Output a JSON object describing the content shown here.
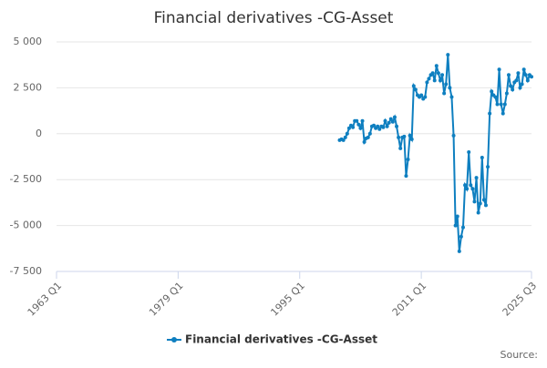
{
  "chart_data": {
    "type": "line",
    "title": "Financial derivatives -CG-Asset",
    "xlim": [
      "1963 Q1",
      "2025 Q3"
    ],
    "xticks": [
      "1963 Q1",
      "1979 Q1",
      "1995 Q1",
      "2011 Q1",
      "2025 Q3"
    ],
    "ylim": [
      -7500,
      5000
    ],
    "yticks": [
      {
        "value": 5000,
        "label": "5 000"
      },
      {
        "value": 2500,
        "label": "2 500"
      },
      0,
      {
        "value": -2500,
        "label": "-2 500"
      },
      {
        "value": -5000,
        "label": "-5 000"
      },
      {
        "value": -7500,
        "label": "-7 500"
      }
    ],
    "grid": true,
    "source": "Source:",
    "x": [
      "2000 Q2",
      "2000 Q3",
      "2000 Q4",
      "2001 Q1",
      "2001 Q2",
      "2001 Q3",
      "2001 Q4",
      "2002 Q1",
      "2002 Q2",
      "2002 Q3",
      "2002 Q4",
      "2003 Q1",
      "2003 Q2",
      "2003 Q3",
      "2003 Q4",
      "2004 Q1",
      "2004 Q2",
      "2004 Q3",
      "2004 Q4",
      "2005 Q1",
      "2005 Q2",
      "2005 Q3",
      "2005 Q4",
      "2006 Q1",
      "2006 Q2",
      "2006 Q3",
      "2006 Q4",
      "2007 Q1",
      "2007 Q2",
      "2007 Q3",
      "2007 Q4",
      "2008 Q1",
      "2008 Q2",
      "2008 Q3",
      "2008 Q4",
      "2009 Q1",
      "2009 Q2",
      "2009 Q3",
      "2009 Q4",
      "2010 Q1",
      "2010 Q2",
      "2010 Q3",
      "2010 Q4",
      "2011 Q1",
      "2011 Q2",
      "2011 Q3",
      "2011 Q4",
      "2012 Q1",
      "2012 Q2",
      "2012 Q3",
      "2012 Q4",
      "2013 Q1",
      "2013 Q2",
      "2013 Q3",
      "2013 Q4",
      "2014 Q1",
      "2014 Q2",
      "2014 Q3",
      "2014 Q4",
      "2015 Q1",
      "2015 Q2",
      "2015 Q3",
      "2015 Q4",
      "2016 Q1",
      "2016 Q2",
      "2016 Q3",
      "2016 Q4",
      "2017 Q1",
      "2017 Q2",
      "2017 Q3",
      "2017 Q4",
      "2018 Q1",
      "2018 Q2",
      "2018 Q3",
      "2018 Q4",
      "2019 Q1",
      "2019 Q2",
      "2019 Q3",
      "2019 Q4",
      "2020 Q1",
      "2020 Q2",
      "2020 Q3",
      "2020 Q4",
      "2021 Q1",
      "2021 Q2",
      "2021 Q3",
      "2021 Q4",
      "2022 Q1",
      "2022 Q2",
      "2022 Q3",
      "2022 Q4",
      "2023 Q1",
      "2023 Q2",
      "2023 Q3",
      "2023 Q4",
      "2024 Q1",
      "2024 Q2",
      "2024 Q3",
      "2024 Q4",
      "2025 Q1",
      "2025 Q2",
      "2025 Q3"
    ],
    "series": [
      {
        "name": "Financial derivatives -CG-Asset",
        "color": "#0e7fc0",
        "values": [
          -350,
          -300,
          -350,
          -200,
          0,
          300,
          450,
          350,
          700,
          700,
          500,
          300,
          700,
          -450,
          -250,
          -200,
          0,
          400,
          450,
          300,
          400,
          250,
          400,
          350,
          700,
          400,
          600,
          800,
          650,
          900,
          400,
          -200,
          -800,
          -200,
          -150,
          -2300,
          -1400,
          -100,
          -300,
          2600,
          2400,
          2100,
          2000,
          2100,
          1900,
          2000,
          2800,
          3000,
          3200,
          3300,
          2900,
          3700,
          3300,
          2900,
          3200,
          2200,
          2700,
          4300,
          2500,
          2000,
          -100,
          -5000,
          -4500,
          -6400,
          -5600,
          -5100,
          -2800,
          -3000,
          -1000,
          -2800,
          -3000,
          -3700,
          -2400,
          -4300,
          -3800,
          -1300,
          -3600,
          -3900,
          -1800,
          1100,
          2300,
          2100,
          2000,
          1600,
          3500,
          1600,
          1100,
          1600,
          2200,
          3200,
          2600,
          2400,
          2800,
          2900,
          3300,
          2500,
          2700,
          3500,
          3200,
          2900,
          3200,
          3100
        ]
      }
    ]
  }
}
